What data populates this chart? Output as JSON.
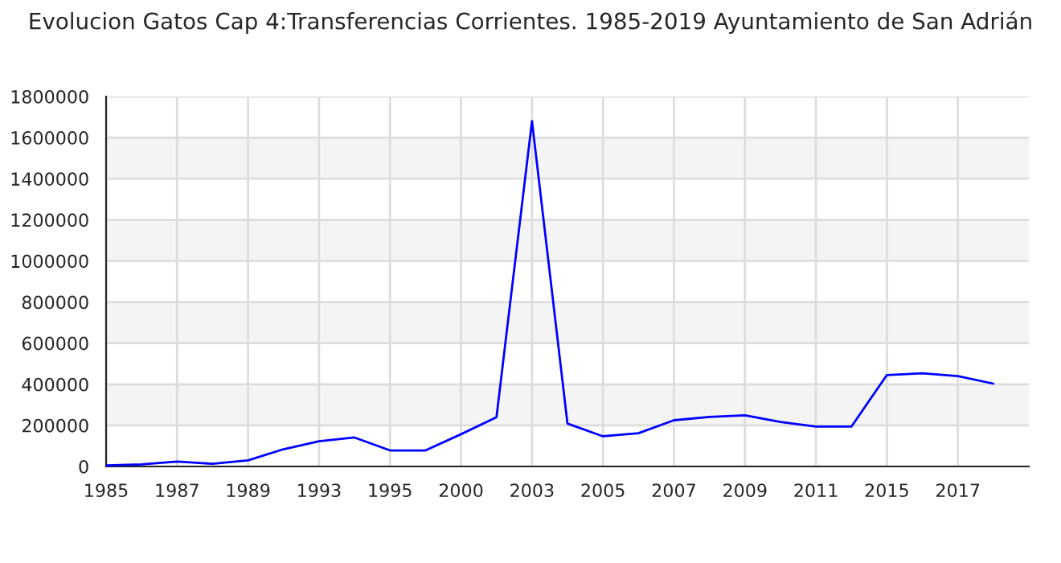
{
  "chart_data": {
    "type": "line",
    "title": "Evolucion Gatos Cap 4:Transferencias Corrientes. 1985-2019 Ayuntamiento de San Adrián",
    "categories": [
      "1985",
      null,
      "1987",
      null,
      "1989",
      null,
      "1993",
      null,
      "1995",
      null,
      "2000",
      null,
      "2003",
      null,
      "2005",
      null,
      "2007",
      null,
      "2009",
      null,
      "2011",
      null,
      "2015",
      null,
      "2017",
      null
    ],
    "series": [
      {
        "color": "#0000ff",
        "values": [
          5000,
          10000,
          24000,
          13000,
          30000,
          84000,
          123000,
          141000,
          78000,
          78000,
          157000,
          240000,
          1680000,
          209000,
          147000,
          162000,
          225000,
          241000,
          249000,
          217000,
          194000,
          194000,
          445000,
          453000,
          440000,
          403000
        ]
      }
    ],
    "ylim": [
      0,
      1800000
    ],
    "yticks": [
      0,
      200000,
      400000,
      600000,
      800000,
      1000000,
      1200000,
      1400000,
      1600000,
      1800000
    ],
    "grid": true,
    "marker": "none",
    "line_style": "solid",
    "legend": false
  }
}
